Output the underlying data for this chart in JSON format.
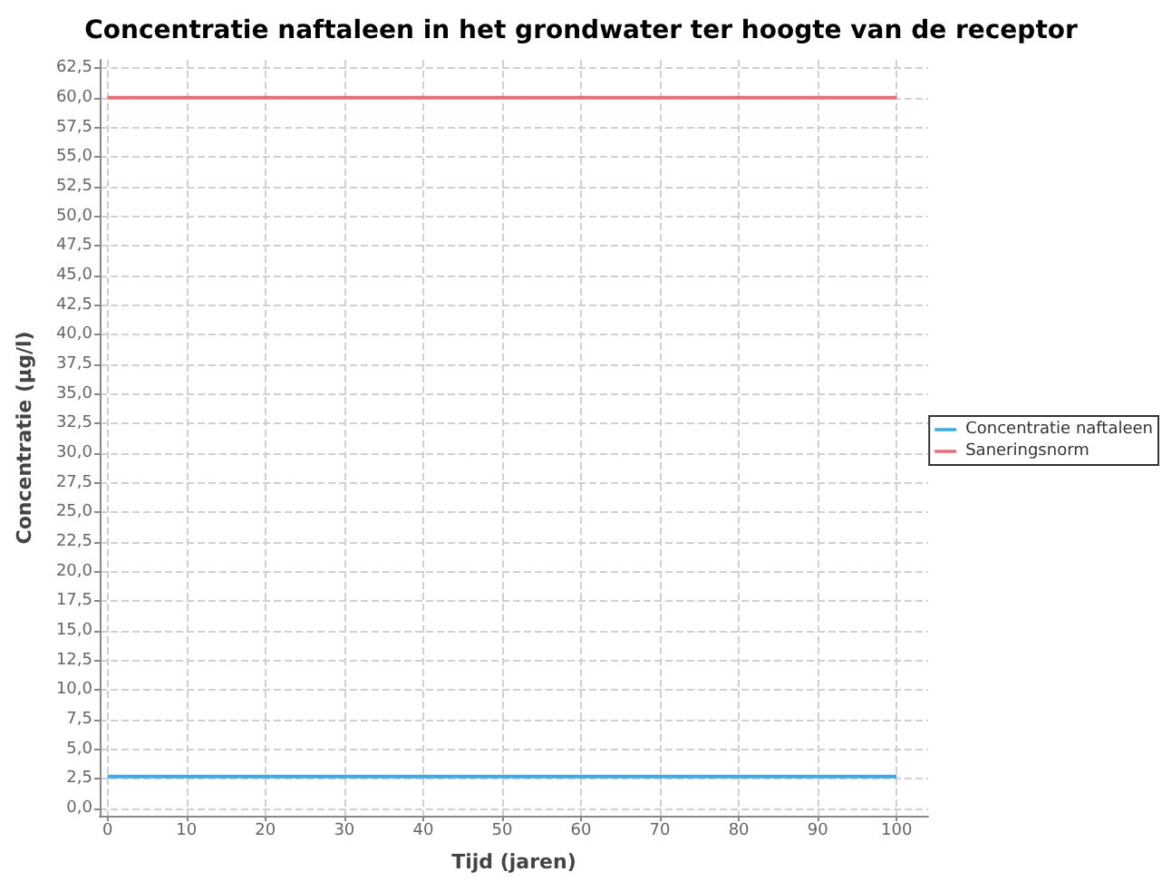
{
  "chart_data": {
    "type": "line",
    "title": "Concentratie naftaleen in het grondwater ter hoogte van de receptor",
    "xlabel": "Tijd (jaren)",
    "ylabel": "Concentratie (µg/l)",
    "series": [
      {
        "name": "Concentratie naftaleen",
        "color": "#3fa9e0",
        "values": [
          2.7,
          2.7
        ]
      },
      {
        "name": "Saneringsnorm",
        "color": "#e8707a",
        "values": [
          60,
          60
        ]
      }
    ],
    "x": [
      0,
      100
    ],
    "xlim": [
      -1,
      104
    ],
    "xticks": [
      0,
      10,
      20,
      30,
      40,
      50,
      60,
      70,
      80,
      90,
      100
    ],
    "ylim": [
      -0.6,
      63.2
    ],
    "yticks": [
      {
        "value": 0,
        "label": "0,0"
      },
      {
        "value": 2.5,
        "label": "2,5"
      },
      {
        "value": 5,
        "label": "5,0"
      },
      {
        "value": 7.5,
        "label": "7,5"
      },
      {
        "value": 10,
        "label": "10,0"
      },
      {
        "value": 12.5,
        "label": "12,5"
      },
      {
        "value": 15,
        "label": "15,0"
      },
      {
        "value": 17.5,
        "label": "17,5"
      },
      {
        "value": 20,
        "label": "20,0"
      },
      {
        "value": 22.5,
        "label": "22,5"
      },
      {
        "value": 25,
        "label": "25,0"
      },
      {
        "value": 27.5,
        "label": "27,5"
      },
      {
        "value": 30,
        "label": "30,0"
      },
      {
        "value": 32.5,
        "label": "32,5"
      },
      {
        "value": 35,
        "label": "35,0"
      },
      {
        "value": 37.5,
        "label": "37,5"
      },
      {
        "value": 40,
        "label": "40,0"
      },
      {
        "value": 42.5,
        "label": "42,5"
      },
      {
        "value": 45,
        "label": "45,0"
      },
      {
        "value": 47.5,
        "label": "47,5"
      },
      {
        "value": 50,
        "label": "50,0"
      },
      {
        "value": 52.5,
        "label": "52,5"
      },
      {
        "value": 55,
        "label": "55,0"
      },
      {
        "value": 57.5,
        "label": "57,5"
      },
      {
        "value": 60,
        "label": "60,0"
      },
      {
        "value": 62.5,
        "label": "62,5"
      }
    ],
    "grid": true,
    "legend": "right",
    "marker": "none",
    "line_style": "solid"
  }
}
